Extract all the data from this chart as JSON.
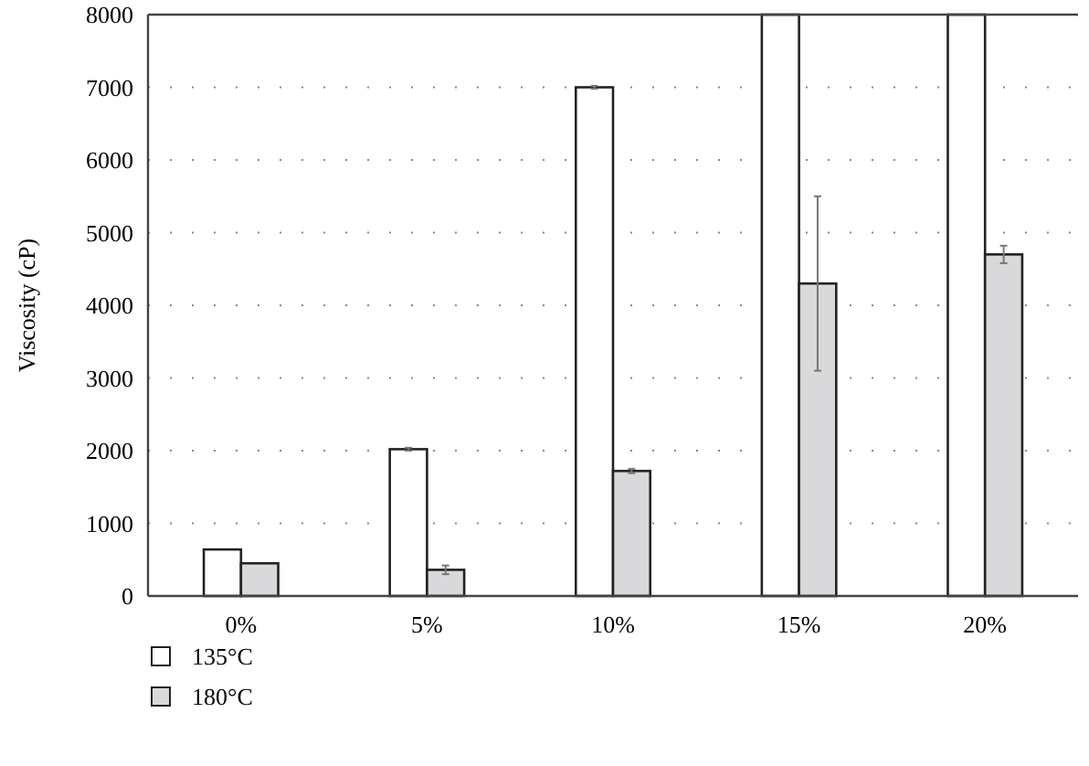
{
  "chart_data": {
    "type": "bar",
    "ylabel": "Viscosity (cP)",
    "categories": [
      "0%",
      "5%",
      "10%",
      "15%",
      "20%"
    ],
    "series": [
      {
        "name": "135°C",
        "color": "#ffffff",
        "values": [
          640,
          2020,
          7000,
          8000,
          8000
        ],
        "errors": [
          null,
          20,
          20,
          null,
          null
        ]
      },
      {
        "name": "180°C",
        "color": "#d9d9db",
        "values": [
          450,
          360,
          1720,
          4300,
          4700
        ],
        "errors": [
          null,
          60,
          30,
          1200,
          120
        ]
      }
    ],
    "ylim": [
      0,
      8000
    ],
    "yticks": [
      0,
      1000,
      2000,
      3000,
      4000,
      5000,
      6000,
      7000,
      8000
    ],
    "grid": "y",
    "legend": "bottom left"
  }
}
